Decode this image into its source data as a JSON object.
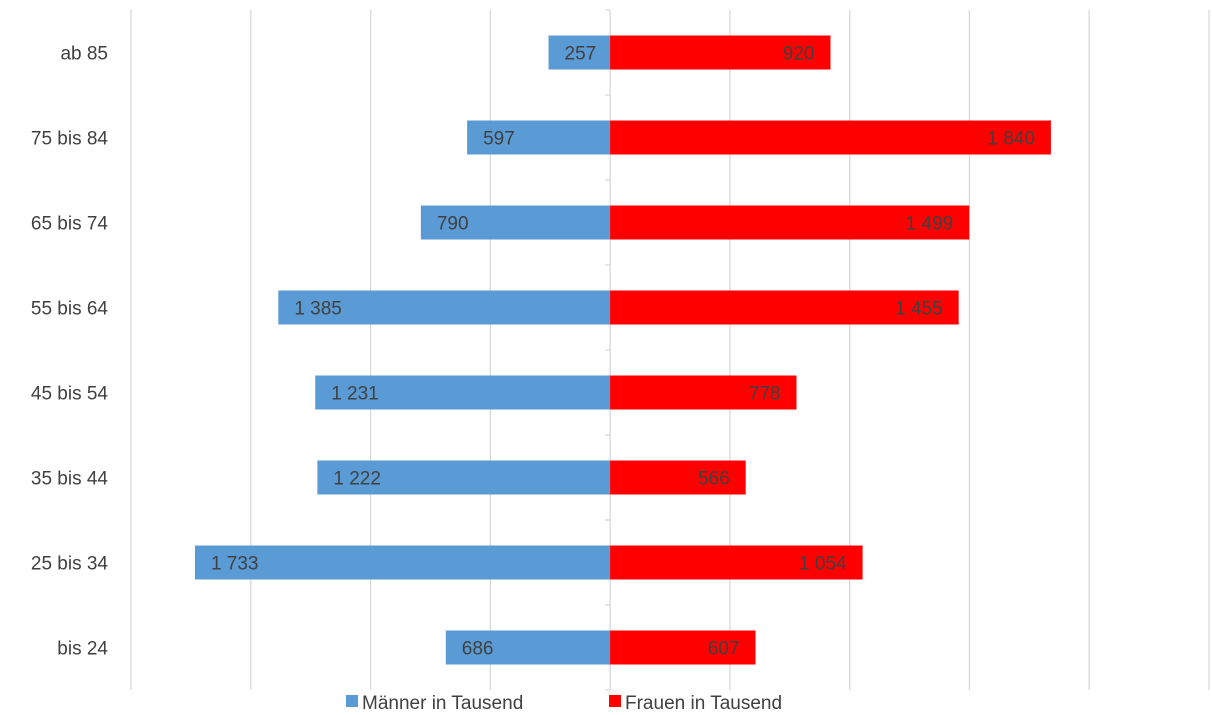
{
  "chart_data": {
    "type": "bar",
    "orientation": "horizontal",
    "layout": "diverging",
    "categories": [
      "ab 85",
      "75 bis 84",
      "65 bis 74",
      "55 bis 64",
      "45 bis 54",
      "35 bis 44",
      "25 bis 34",
      "bis 24"
    ],
    "series": [
      {
        "name": "Männer in Tausend",
        "color": "#5b9bd5",
        "direction": "left",
        "values": [
          257,
          597,
          790,
          1385,
          1231,
          1222,
          1733,
          686
        ],
        "labels": [
          "257",
          "597",
          "790",
          "1 385",
          "1 231",
          "1 222",
          "1 733",
          "686"
        ]
      },
      {
        "name": "Frauen in Tausend",
        "color": "#ff0000",
        "direction": "right",
        "values": [
          920,
          1840,
          1499,
          1455,
          778,
          566,
          1054,
          607
        ],
        "labels": [
          "920",
          "1 840",
          "1 499",
          "1 455",
          "778",
          "566",
          "1 054",
          "607"
        ]
      }
    ],
    "xlim": [
      -2000,
      2500
    ],
    "grid": true,
    "legend_position": "bottom",
    "title": "",
    "xlabel": "",
    "ylabel": ""
  }
}
